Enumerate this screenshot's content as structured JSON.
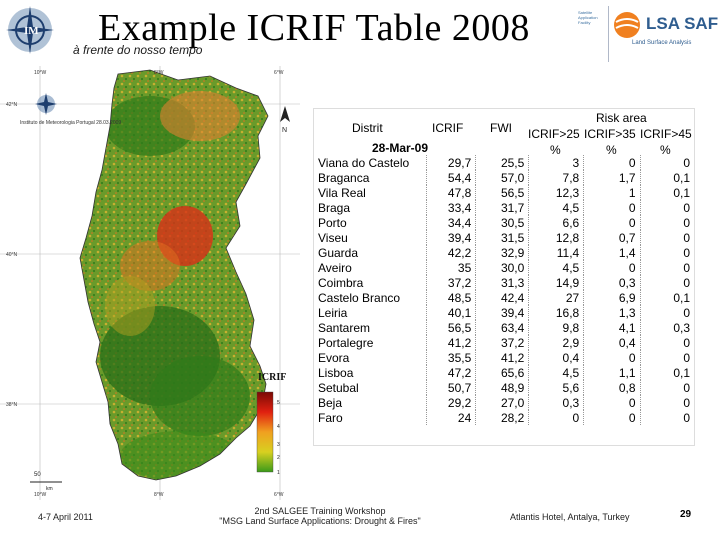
{
  "header": {
    "title": "Example  ICRIF Table 2008",
    "subtitle": "à frente do nosso tempo",
    "lsa_brand": "LSA SAF",
    "lsa_tagline": "Land Surface Analysis",
    "small_text": "Satellite Application Facility"
  },
  "map": {
    "lat_labels": [
      "42°N",
      "40°N",
      "38°N"
    ],
    "lon_labels": [
      "10°W",
      "8°W",
      "6°W"
    ],
    "im_logo_text": "Instituto de Meteorologia Portugal 28.03.2009",
    "north_label": "N",
    "legend_title": "ICRIF",
    "legend_values": [
      "5",
      "4",
      "3",
      "2",
      "1"
    ],
    "scale_label": "50",
    "scale_unit": "km",
    "colors": {
      "low": "#2e7d1a",
      "mid": "#a6c61f",
      "high": "#f0d020",
      "veryhigh": "#e02010",
      "extreme": "#7a0a05"
    }
  },
  "table": {
    "col_distrit": "Distrit",
    "col_icrif": "ICRIF",
    "col_fwi": "FWI",
    "risk_area": "Risk area",
    "risk_cols": [
      "ICRIF>25",
      "ICRIF>35",
      "ICRIF>45"
    ],
    "pct": "%",
    "date": "28-Mar-09",
    "rows": [
      [
        "Viana do Castelo",
        "29,7",
        "25,5",
        "3",
        "0",
        "0"
      ],
      [
        "Braganca",
        "54,4",
        "57,0",
        "7,8",
        "1,7",
        "0,1"
      ],
      [
        "Vila Real",
        "47,8",
        "56,5",
        "12,3",
        "1",
        "0,1"
      ],
      [
        "Braga",
        "33,4",
        "31,7",
        "4,5",
        "0",
        "0"
      ],
      [
        "Porto",
        "34,4",
        "30,5",
        "6,6",
        "0",
        "0"
      ],
      [
        "Viseu",
        "39,4",
        "31,5",
        "12,8",
        "0,7",
        "0"
      ],
      [
        "Guarda",
        "42,2",
        "32,9",
        "11,4",
        "1,4",
        "0"
      ],
      [
        "Aveiro",
        "35",
        "30,0",
        "4,5",
        "0",
        "0"
      ],
      [
        "Coimbra",
        "37,2",
        "31,3",
        "14,9",
        "0,3",
        "0"
      ],
      [
        "Castelo Branco",
        "48,5",
        "42,4",
        "27",
        "6,9",
        "0,1"
      ],
      [
        "Leiria",
        "40,1",
        "39,4",
        "16,8",
        "1,3",
        "0"
      ],
      [
        "Santarem",
        "56,5",
        "63,4",
        "9,8",
        "4,1",
        "0,3"
      ],
      [
        "Portalegre",
        "41,2",
        "37,2",
        "2,9",
        "0,4",
        "0"
      ],
      [
        "Evora",
        "35,5",
        "41,2",
        "0,4",
        "0",
        "0"
      ],
      [
        "Lisboa",
        "47,2",
        "65,6",
        "4,5",
        "1,1",
        "0,1"
      ],
      [
        "Setubal",
        "50,7",
        "48,9",
        "5,6",
        "0,8",
        "0"
      ],
      [
        "Beja",
        "29,2",
        "27,0",
        "0,3",
        "0",
        "0"
      ],
      [
        "Faro",
        "24",
        "28,2",
        "0",
        "0",
        "0"
      ]
    ]
  },
  "footer": {
    "date": "4-7 April 2011",
    "event_line1": "2nd SALGEE Training Workshop",
    "event_line2": "\"MSG Land Surface Applications: Drought & Fires\"",
    "location": "Atlantis Hotel, Antalya, Turkey",
    "page": "29"
  }
}
